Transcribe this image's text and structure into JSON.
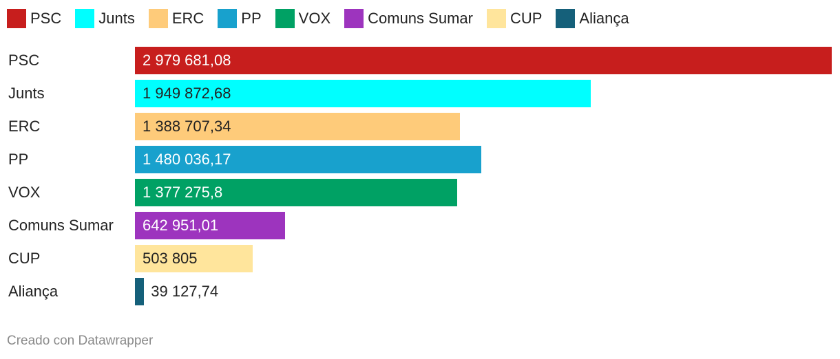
{
  "chart_data": {
    "type": "bar",
    "orientation": "horizontal",
    "title": "",
    "xlabel": "",
    "ylabel": "",
    "categories": [
      "PSC",
      "Junts",
      "ERC",
      "PP",
      "VOX",
      "Comuns Sumar",
      "CUP",
      "Aliança"
    ],
    "values": [
      2979681.08,
      1949872.68,
      1388707.34,
      1480036.17,
      1377275.8,
      642951.01,
      503805,
      39127.74
    ],
    "value_labels": [
      "2 979 681,08",
      "1 949 872,68",
      "1 388 707,34",
      "1 480 036,17",
      "1 377 275,8",
      "642 951,01",
      "503 805",
      "39 127,74"
    ],
    "colors": [
      "#c71e1d",
      "#00ffff",
      "#fecb7a",
      "#18a1cd",
      "#00a164",
      "#9d34be",
      "#ffe59c",
      "#15607a"
    ],
    "label_colors": [
      "#ffffff",
      "#222222",
      "#222222",
      "#ffffff",
      "#ffffff",
      "#ffffff",
      "#222222",
      "#222222"
    ],
    "xlim": [
      0,
      2979681.08
    ],
    "grid": false,
    "legend": {
      "placement": "top-left",
      "entries": [
        "PSC",
        "Junts",
        "ERC",
        "PP",
        "VOX",
        "Comuns Sumar",
        "CUP",
        "Aliança"
      ]
    }
  },
  "footer": {
    "credit": "Creado con Datawrapper"
  }
}
